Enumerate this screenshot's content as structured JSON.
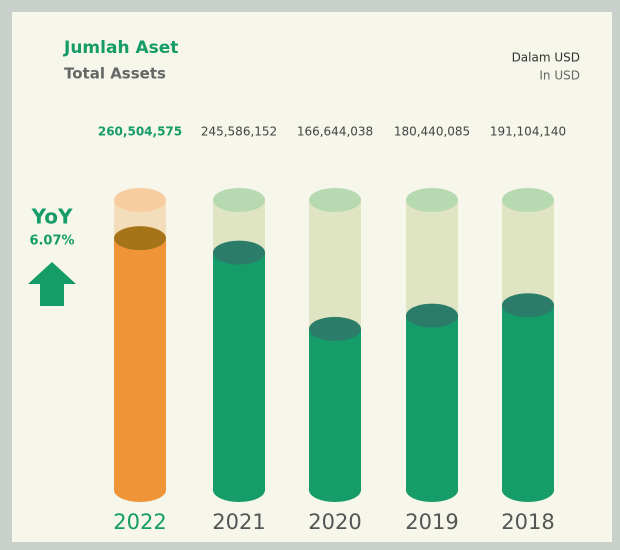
{
  "chart_data": {
    "type": "cylinder",
    "title": "Jumlah Aset",
    "subtitle": "Total Assets",
    "unit": "Dalam USD",
    "unit_en": "In USD",
    "yoy_label": "YoY",
    "yoy_value": "6.07%",
    "categories": [
      "2022",
      "2021",
      "2020",
      "2019",
      "2018"
    ],
    "values": [
      260504575,
      245586152,
      166644038,
      180440085,
      191104140
    ],
    "value_labels": [
      "260,504,575",
      "245,586,152",
      "166,644,038",
      "180,440,085",
      "191,104,140"
    ],
    "highlight": "2022",
    "color": "#159c68",
    "highlight_color": "#ef9437",
    "ylim": [
      0,
      300000000
    ]
  }
}
